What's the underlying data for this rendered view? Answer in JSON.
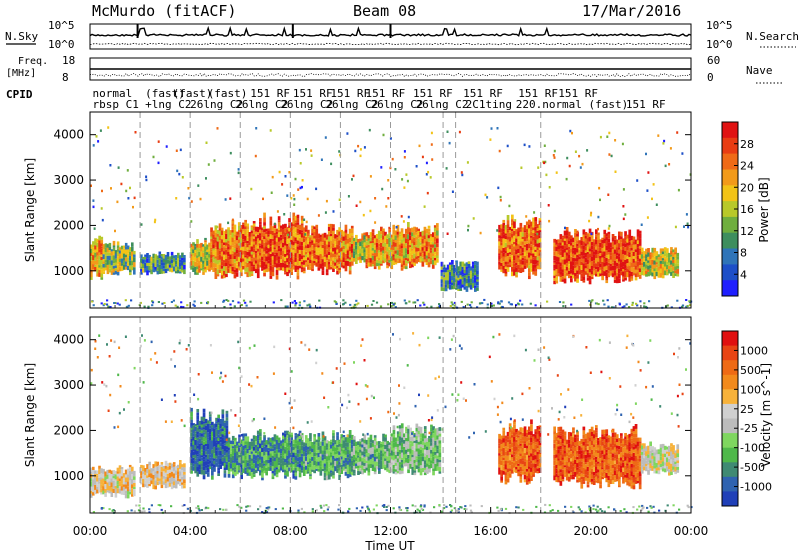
{
  "header": {
    "station": "McMurdo (fitACF)",
    "beam": "Beam 08",
    "date": "17/Mar/2016"
  },
  "noise_panel": {
    "left_label": "N.Sky",
    "right_label": "N.Search",
    "left_ticks": [
      "10^5",
      "10^0"
    ],
    "right_ticks": [
      "10^5",
      "10^0"
    ]
  },
  "freq_panel": {
    "left_label_1": "Freq.",
    "left_label_2": "[MHz]",
    "right_label": "Nave",
    "left_ticks": [
      "18",
      "8"
    ],
    "right_ticks": [
      "60",
      "0"
    ]
  },
  "cpid": {
    "label": "CPID",
    "row1": [
      {
        "t": 0.1,
        "text": "normal"
      },
      {
        "t": 2.2,
        "text": "(fast)"
      },
      {
        "t": 3.3,
        "text": "(fast)"
      },
      {
        "t": 4.7,
        "text": "(fast)"
      },
      {
        "t": 6.4,
        "text": "151 RF"
      },
      {
        "t": 8.1,
        "text": "151 RF"
      },
      {
        "t": 9.6,
        "text": "151 RF"
      },
      {
        "t": 11.0,
        "text": "151 RF"
      },
      {
        "t": 12.9,
        "text": "151 RF"
      },
      {
        "t": 14.9,
        "text": "151 RF"
      },
      {
        "t": 17.1,
        "text": "151 RF"
      },
      {
        "t": 18.7,
        "text": "151 RF"
      }
    ],
    "row2": [
      {
        "t": 0.1,
        "text": "rbsp C1"
      },
      {
        "t": 2.2,
        "text": "+lng C2"
      },
      {
        "t": 4.0,
        "text": "26lng C2"
      },
      {
        "t": 5.8,
        "text": "26lng C2"
      },
      {
        "t": 7.6,
        "text": "26lng C2"
      },
      {
        "t": 9.4,
        "text": "26lng C2"
      },
      {
        "t": 11.2,
        "text": "26lng C2"
      },
      {
        "t": 13.0,
        "text": "26lng C2"
      },
      {
        "t": 15.0,
        "text": "2C1ting"
      },
      {
        "t": 17.0,
        "text": "220.normal (fast)"
      },
      {
        "t": 21.4,
        "text": "151 RF"
      }
    ]
  },
  "colorbars": {
    "power": {
      "label": "Power [dB]",
      "ticks": [
        "28",
        "24",
        "20",
        "16",
        "12",
        "8",
        "4"
      ],
      "colors": [
        "#1f1fff",
        "#1d4fc8",
        "#2f74b8",
        "#3e8e5e",
        "#6fae3e",
        "#b8c92a",
        "#f2c317",
        "#f29a1a",
        "#ef6a16",
        "#e83c12",
        "#e01212"
      ]
    },
    "velocity": {
      "label": "Velocity [m s^-1]",
      "ticks": [
        "1000",
        "500",
        "100",
        "25",
        "-25",
        "-100",
        "-500",
        "-1000"
      ],
      "colors": [
        "#2040b8",
        "#2f63b0",
        "#3f8a73",
        "#4fb84a",
        "#7fd65f",
        "#bcbcbc",
        "#d0d0d0",
        "#f7b23a",
        "#f28a1c",
        "#ee6a15",
        "#e84414",
        "#e01010"
      ]
    }
  },
  "chart_data": {
    "type": "heatmap",
    "title": "McMurdo (fitACF)",
    "xlabel": "Time UT",
    "ylabel": "Slant Range [km]",
    "x_ticks": [
      "00:00",
      "04:00",
      "08:00",
      "12:00",
      "16:00",
      "20:00",
      "00:00"
    ],
    "y_ticks": [
      "1000",
      "2000",
      "3000",
      "4000"
    ],
    "xlim_hours": [
      0,
      24
    ],
    "ylim_km": [
      180,
      4500
    ],
    "cpid_change_hours": [
      2.0,
      4.0,
      6.0,
      8.0,
      10.0,
      12.0,
      14.1,
      14.6,
      18.0
    ],
    "power_echo_regions": [
      {
        "t0": 0.0,
        "t1": 0.5,
        "r0": 800,
        "r1": 1800,
        "level": 0.65
      },
      {
        "t0": 0.5,
        "t1": 1.8,
        "r0": 900,
        "r1": 1600,
        "level": 0.45
      },
      {
        "t0": 2.0,
        "t1": 3.8,
        "r0": 900,
        "r1": 1400,
        "level": 0.3
      },
      {
        "t0": 4.0,
        "t1": 4.8,
        "r0": 900,
        "r1": 1700,
        "level": 0.55
      },
      {
        "t0": 4.8,
        "t1": 6.5,
        "r0": 800,
        "r1": 2100,
        "level": 0.75
      },
      {
        "t0": 6.5,
        "t1": 8.5,
        "r0": 800,
        "r1": 2200,
        "level": 0.85
      },
      {
        "t0": 8.5,
        "t1": 10.5,
        "r0": 900,
        "r1": 2000,
        "level": 0.8
      },
      {
        "t0": 10.5,
        "t1": 11.0,
        "r0": 1100,
        "r1": 1800,
        "level": 0.55
      },
      {
        "t0": 11.0,
        "t1": 13.9,
        "r0": 1000,
        "r1": 2000,
        "level": 0.7
      },
      {
        "t0": 14.0,
        "t1": 15.5,
        "r0": 500,
        "r1": 1200,
        "level": 0.25
      },
      {
        "t0": 16.3,
        "t1": 18.0,
        "r0": 800,
        "r1": 2200,
        "level": 0.8
      },
      {
        "t0": 18.5,
        "t1": 22.0,
        "r0": 700,
        "r1": 1900,
        "level": 0.9
      },
      {
        "t0": 22.0,
        "t1": 23.5,
        "r0": 800,
        "r1": 1500,
        "level": 0.55
      }
    ],
    "velocity_echo_regions": [
      {
        "t0": 0.0,
        "t1": 1.8,
        "r0": 500,
        "r1": 1200,
        "level": 0.55
      },
      {
        "t0": 2.0,
        "t1": 3.8,
        "r0": 700,
        "r1": 1300,
        "level": 0.6
      },
      {
        "t0": 4.0,
        "t1": 5.5,
        "r0": 900,
        "r1": 2500,
        "level": 0.1
      },
      {
        "t0": 5.5,
        "t1": 8.5,
        "r0": 900,
        "r1": 2000,
        "level": 0.2
      },
      {
        "t0": 8.5,
        "t1": 10.5,
        "r0": 900,
        "r1": 2000,
        "level": 0.25
      },
      {
        "t0": 10.5,
        "t1": 12.0,
        "r0": 1000,
        "r1": 1900,
        "level": 0.3
      },
      {
        "t0": 12.0,
        "t1": 14.0,
        "r0": 1000,
        "r1": 2100,
        "level": 0.35
      },
      {
        "t0": 16.3,
        "t1": 18.0,
        "r0": 800,
        "r1": 2200,
        "level": 0.85
      },
      {
        "t0": 18.5,
        "t1": 22.0,
        "r0": 700,
        "r1": 2100,
        "level": 0.85
      },
      {
        "t0": 22.0,
        "t1": 23.5,
        "r0": 1000,
        "r1": 1700,
        "level": 0.5
      }
    ]
  }
}
